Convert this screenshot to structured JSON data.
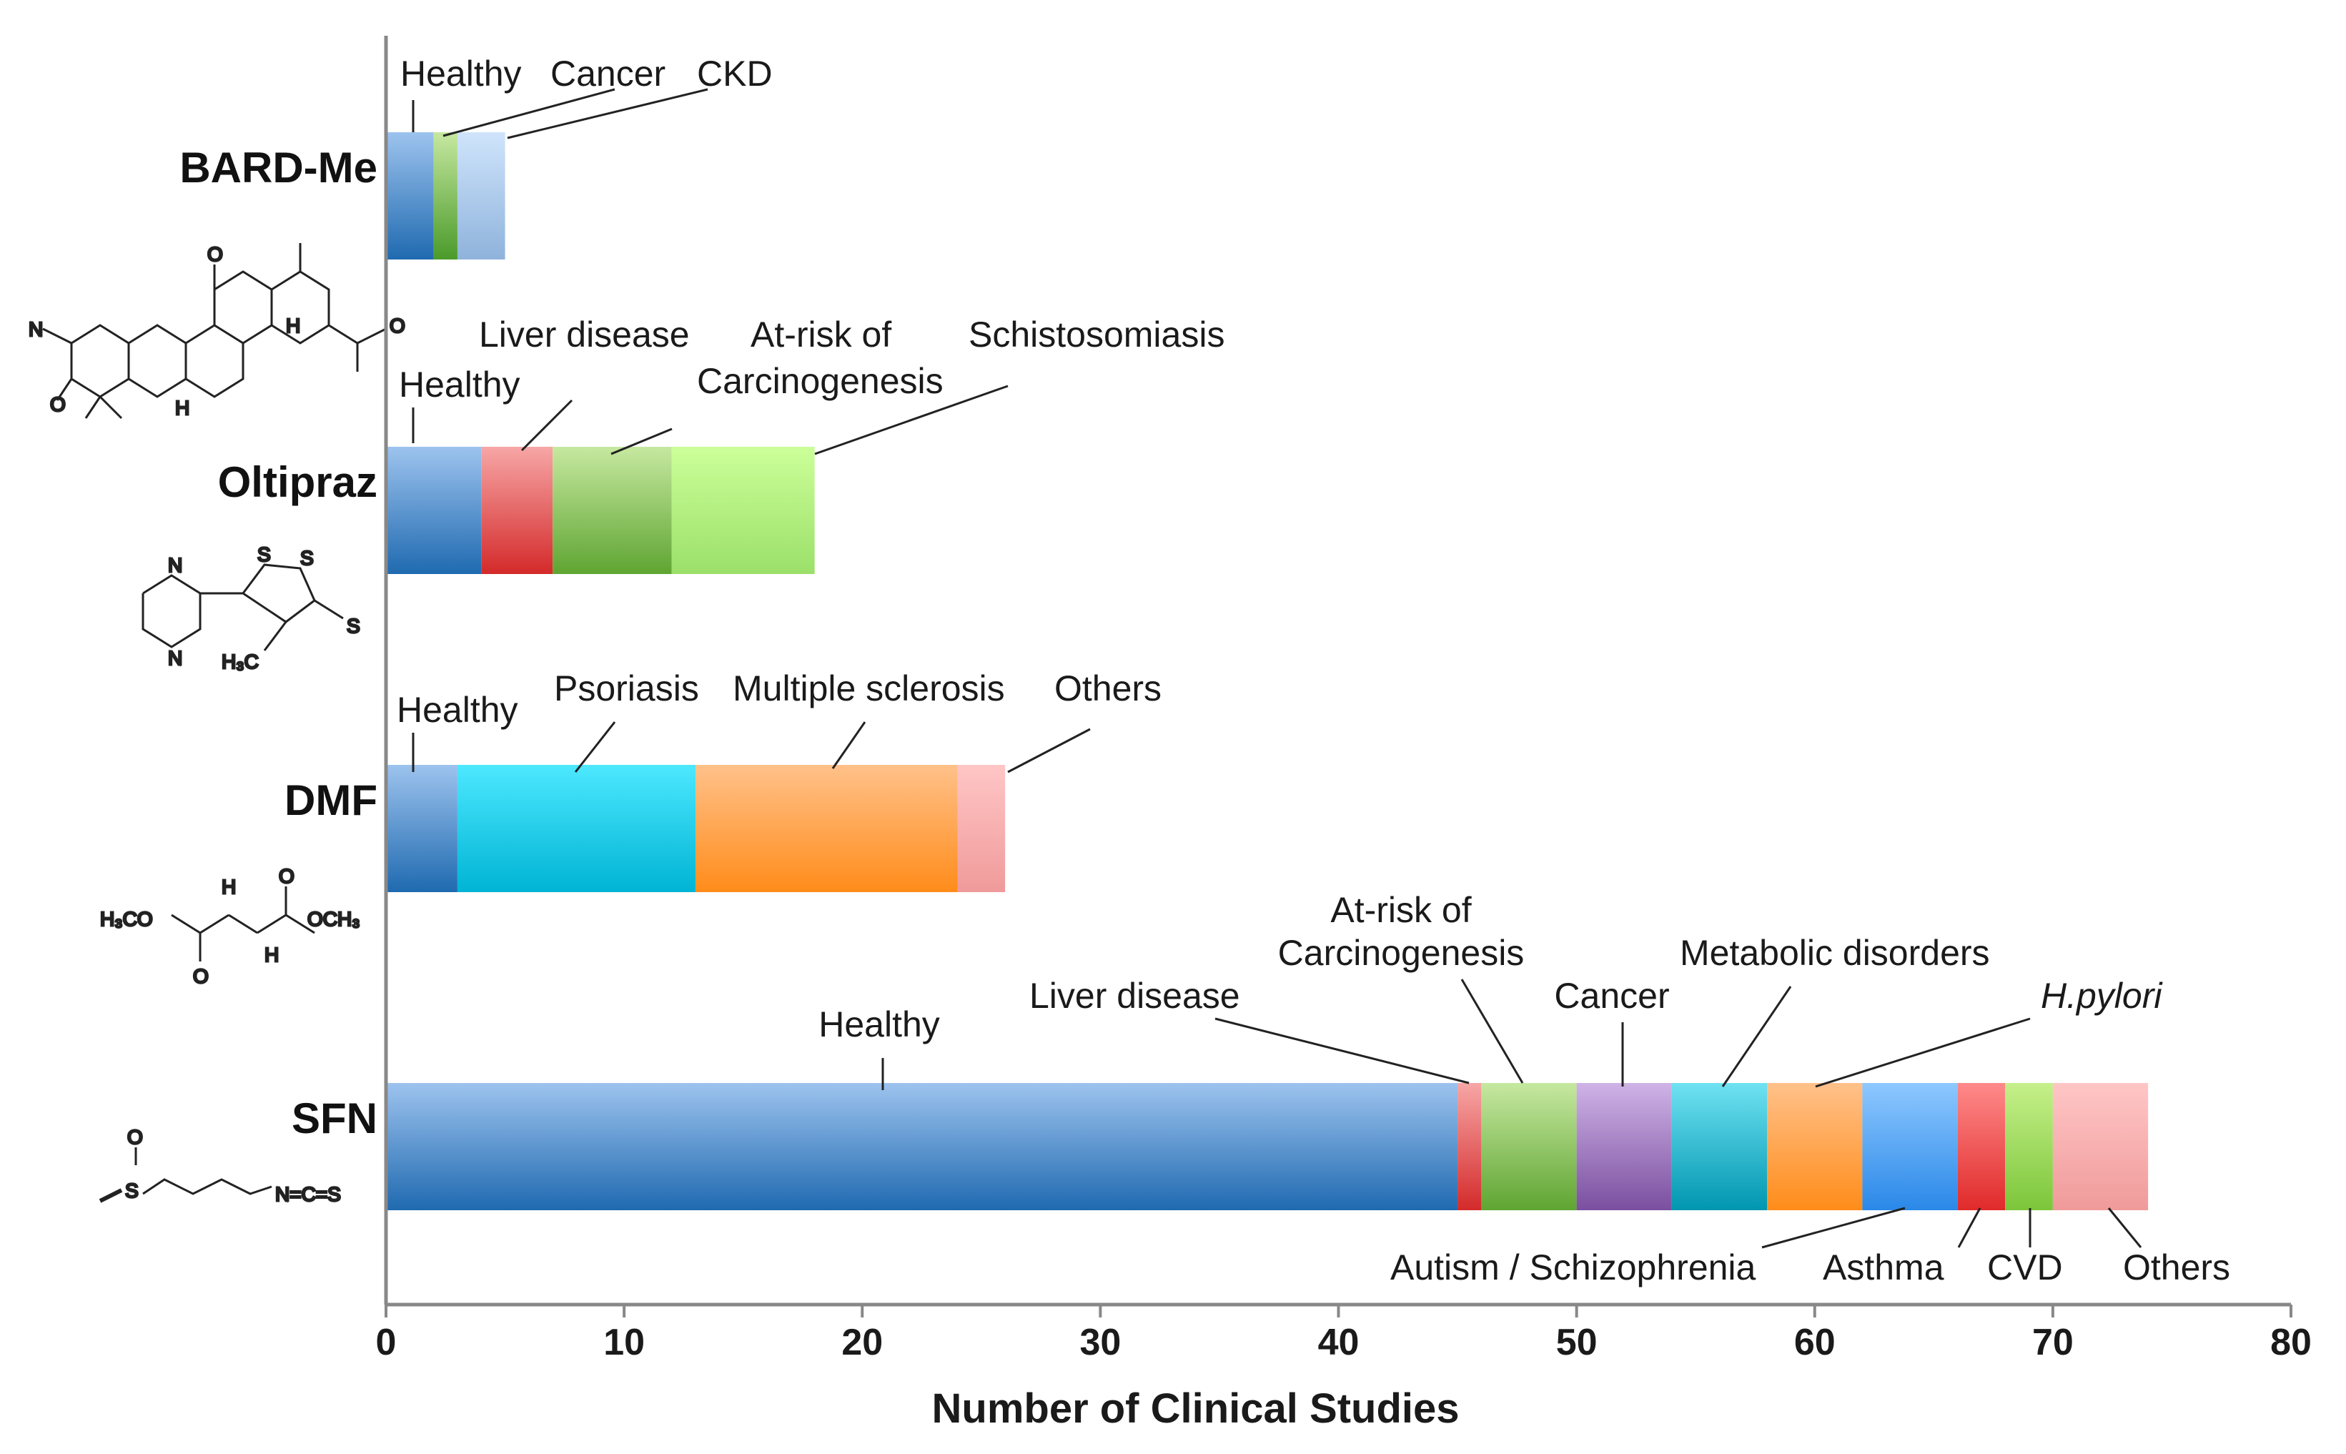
{
  "chart_data": {
    "type": "bar",
    "orientation": "horizontal",
    "stacked": true,
    "title": "",
    "xlabel": "Number of Clinical Studies",
    "ylabel": "",
    "xlim": [
      0,
      80
    ],
    "xticks": [
      0,
      10,
      20,
      30,
      40,
      50,
      60,
      70,
      80
    ],
    "grid": false,
    "categories": [
      "BARD-Me",
      "Oltipraz",
      "DMF",
      "SFN"
    ],
    "bars": [
      {
        "name": "BARD-Me",
        "segments": [
          {
            "label": "Healthy",
            "value": 2,
            "color_top": "#9dc3ee",
            "color_bottom": "#1f6ab0"
          },
          {
            "label": "Cancer",
            "value": 1,
            "color_top": "#c6e8a0",
            "color_bottom": "#4a9a2a"
          },
          {
            "label": "CKD",
            "value": 2,
            "color_top": "#cfe4fb",
            "color_bottom": "#8fb3dc"
          }
        ]
      },
      {
        "name": "Oltipraz",
        "segments": [
          {
            "label": "Healthy",
            "value": 4,
            "color_top": "#9dc3ee",
            "color_bottom": "#1f6ab0"
          },
          {
            "label": "Liver disease",
            "value": 3,
            "color_top": "#f7a6a6",
            "color_bottom": "#d42a2a"
          },
          {
            "label": "At-risk of\nCarcinogenesis",
            "value": 5,
            "color_top": "#c6e8a0",
            "color_bottom": "#5fa532"
          },
          {
            "label": "Schistosomiasis",
            "value": 6,
            "color_top": "#ccff99",
            "color_bottom": "#9be06a"
          }
        ]
      },
      {
        "name": "DMF",
        "segments": [
          {
            "label": "Healthy",
            "value": 3,
            "color_top": "#9dc3ee",
            "color_bottom": "#1f6ab0"
          },
          {
            "label": "Psoriasis",
            "value": 10,
            "color_top": "#4de8ff",
            "color_bottom": "#00b4d4"
          },
          {
            "label": "Multiple sclerosis",
            "value": 11,
            "color_top": "#ffc18a",
            "color_bottom": "#ff8c1a"
          },
          {
            "label": "Others",
            "value": 2,
            "color_top": "#ffc6c6",
            "color_bottom": "#f09a9a"
          }
        ]
      },
      {
        "name": "SFN",
        "segments": [
          {
            "label": "Healthy",
            "value": 45,
            "color_top": "#9dc3ee",
            "color_bottom": "#1f6ab0"
          },
          {
            "label": "Liver disease",
            "value": 1,
            "color_top": "#f7a6a6",
            "color_bottom": "#d42a2a"
          },
          {
            "label": "At-risk of\nCarcinogenesis",
            "value": 4,
            "color_top": "#c6e8a0",
            "color_bottom": "#5fa532"
          },
          {
            "label": "Cancer",
            "value": 4,
            "color_top": "#cfb3e6",
            "color_bottom": "#7a4fa0"
          },
          {
            "label": "Metabolic disorders",
            "value": 4,
            "color_top": "#6fe2f2",
            "color_bottom": "#0096b0"
          },
          {
            "label": "H.pylori",
            "value": 4,
            "color_top": "#ffc18a",
            "color_bottom": "#ff8c1a"
          },
          {
            "label": "Autism / Schizophrenia",
            "value": 4,
            "color_top": "#8ec8ff",
            "color_bottom": "#2a88e8"
          },
          {
            "label": "Asthma",
            "value": 2,
            "color_top": "#ff8a8a",
            "color_bottom": "#e02a2a"
          },
          {
            "label": "CVD",
            "value": 2,
            "color_top": "#c6f08a",
            "color_bottom": "#7cc63a"
          },
          {
            "label": "Others",
            "value": 4,
            "color_top": "#ffc6c6",
            "color_bottom": "#f09a9a"
          }
        ]
      }
    ],
    "structure_labels": {
      "bard": [
        "N",
        "O",
        "O",
        "H",
        "H",
        "O"
      ],
      "oltipraz": [
        "N",
        "N",
        "S",
        "S",
        "S",
        "H₃C"
      ],
      "dmf": [
        "H₃CO",
        "OCH₃",
        "O",
        "O",
        "H",
        "H"
      ],
      "sfn": [
        "O",
        "S",
        "N=C=S"
      ]
    }
  }
}
